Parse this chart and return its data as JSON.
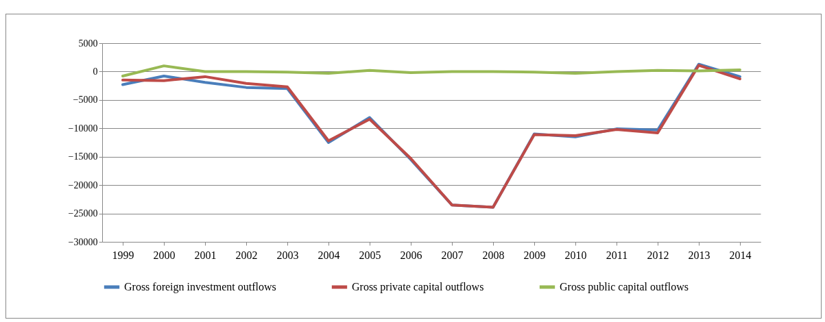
{
  "chart_data": {
    "type": "line",
    "categories": [
      "1999",
      "2000",
      "2001",
      "2002",
      "2003",
      "2004",
      "2005",
      "2006",
      "2007",
      "2008",
      "2009",
      "2010",
      "2011",
      "2012",
      "2013",
      "2014"
    ],
    "series": [
      {
        "name": "Gross foreign investment outflows",
        "color": "#4a7ebb",
        "values": [
          -2300,
          -800,
          -1900,
          -2800,
          -3000,
          -12500,
          -8100,
          -15500,
          -23500,
          -23900,
          -11000,
          -11500,
          -10100,
          -10300,
          1300,
          -900
        ]
      },
      {
        "name": "Gross private capital outflows",
        "color": "#be4b48",
        "values": [
          -1500,
          -1600,
          -900,
          -2100,
          -2700,
          -12200,
          -8400,
          -15300,
          -23500,
          -23900,
          -11100,
          -11300,
          -10200,
          -10800,
          1100,
          -1300
        ]
      },
      {
        "name": "Gross public capital outflows",
        "color": "#98b954",
        "values": [
          -800,
          1000,
          0,
          0,
          -100,
          -300,
          200,
          -200,
          0,
          0,
          -100,
          -300,
          0,
          200,
          100,
          300
        ]
      }
    ],
    "ylim": [
      -30000,
      5000
    ],
    "yticks": [
      -30000,
      -25000,
      -20000,
      -15000,
      -10000,
      -5000,
      0,
      5000
    ],
    "grid": "y",
    "legend": "bottom",
    "line_style": "solid",
    "marker": "none"
  }
}
